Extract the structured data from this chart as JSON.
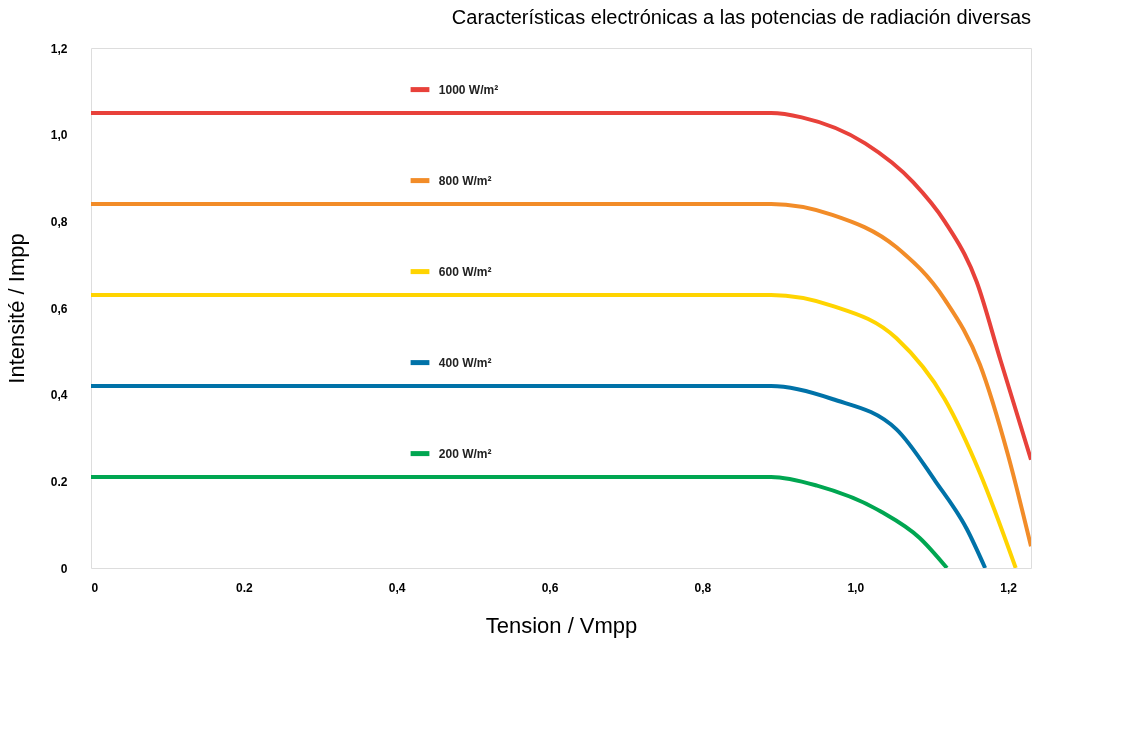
{
  "chart_data": {
    "type": "line",
    "title": "Características electrónicas a las potencias de radiación diversas",
    "xlabel": "Tension / Vmpp",
    "ylabel": "Intensité / Impp",
    "xlim": [
      0,
      1.23
    ],
    "ylim": [
      0,
      1.2
    ],
    "xticks": [
      0,
      {
        "value": 0.2,
        "label": "0.2"
      },
      {
        "value": 0.4,
        "label": "0,4"
      },
      {
        "value": 0.6,
        "label": "0,6"
      },
      {
        "value": 0.8,
        "label": "0,8"
      },
      {
        "value": 1.0,
        "label": "1,0"
      },
      {
        "value": 1.2,
        "label": "1,2"
      }
    ],
    "yticks": [
      0,
      {
        "value": 0.2,
        "label": "0.2"
      },
      {
        "value": 0.4,
        "label": "0,4"
      },
      {
        "value": 0.6,
        "label": "0,6"
      },
      {
        "value": 0.8,
        "label": "0,8"
      },
      {
        "value": 1.0,
        "label": "1,0"
      },
      {
        "value": 1.2,
        "label": "1,2"
      }
    ],
    "grid": false,
    "legend": "top",
    "marker": "none",
    "line_style": "solid",
    "series": [
      {
        "name": "1000 W/m²",
        "color": "#e8413a",
        "x": [
          0,
          0.89,
          0.93,
          1.013,
          1.076,
          1.117,
          1.159,
          1.19,
          1.23
        ],
        "values": [
          1.05,
          1.05,
          1.04,
          0.98,
          0.89,
          0.8,
          0.66,
          0.48,
          0.25
        ]
      },
      {
        "name": "800 W/m²",
        "color": "#f28c28",
        "x": [
          0,
          0.89,
          0.97,
          1.054,
          1.117,
          1.163,
          1.2,
          1.23
        ],
        "values": [
          0.84,
          0.84,
          0.815,
          0.74,
          0.62,
          0.47,
          0.26,
          0.05
        ]
      },
      {
        "name": "600 W/m²",
        "color": "#ffd400",
        "x": [
          0,
          0.89,
          0.97,
          1.054,
          1.117,
          1.163,
          1.21
        ],
        "values": [
          0.63,
          0.63,
          0.605,
          0.53,
          0.39,
          0.22,
          0
        ]
      },
      {
        "name": "400 W/m²",
        "color": "#0072a8",
        "x": [
          0,
          0.89,
          0.97,
          1.054,
          1.105,
          1.146,
          1.17
        ],
        "values": [
          0.42,
          0.42,
          0.39,
          0.32,
          0.2,
          0.09,
          0
        ]
      },
      {
        "name": "200 W/m²",
        "color": "#00a651",
        "x": [
          0,
          0.89,
          0.95,
          1.034,
          1.084,
          1.12
        ],
        "values": [
          0.21,
          0.21,
          0.19,
          0.13,
          0.07,
          0
        ]
      }
    ]
  }
}
